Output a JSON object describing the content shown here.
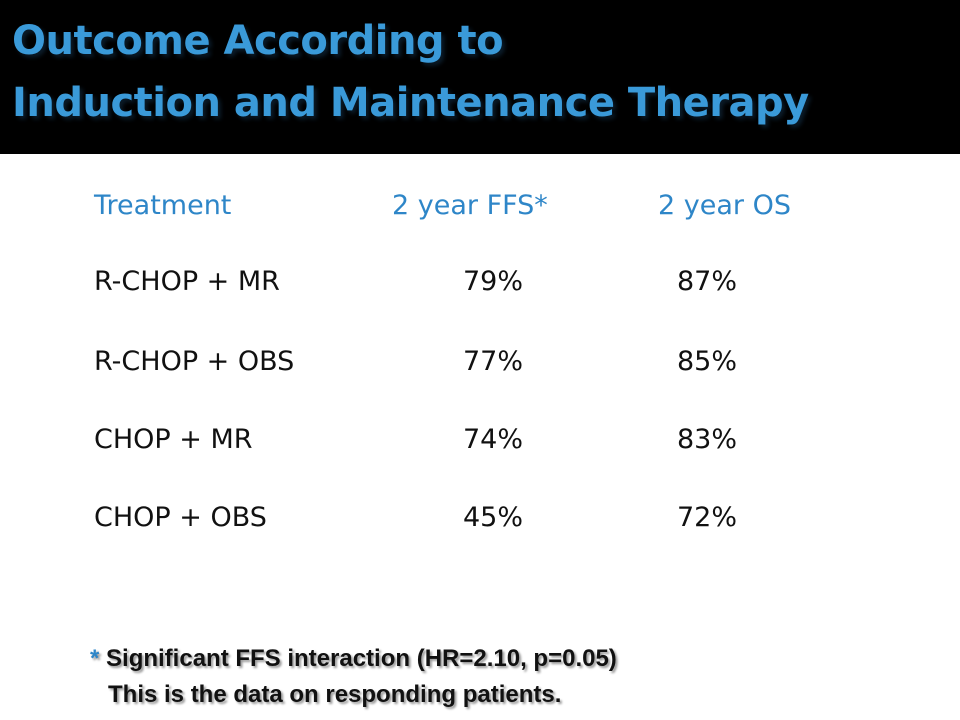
{
  "slide": {
    "title_line1": "Outcome According to",
    "title_line2": "Induction and Maintenance Therapy"
  },
  "table": {
    "headers": [
      "Treatment",
      "2 year FFS*",
      "2 year OS"
    ],
    "rows": [
      {
        "treatment": "R-CHOP + MR",
        "ffs": "79%",
        "os": "87%"
      },
      {
        "treatment": "R-CHOP + OBS",
        "ffs": "77%",
        "os": "85%"
      },
      {
        "treatment": "CHOP + MR",
        "ffs": "74%",
        "os": "83%"
      },
      {
        "treatment": "CHOP + OBS",
        "ffs": "45%",
        "os": "72%"
      }
    ]
  },
  "footnote": {
    "marker": "*",
    "line1": "Significant FFS interaction (HR=2.10, p=0.05)",
    "line2": "This is the data on responding patients."
  },
  "colors": {
    "title": "#3a9ad9",
    "header": "#2e86c8",
    "background_top": "#000000",
    "background_content": "#ffffff"
  }
}
